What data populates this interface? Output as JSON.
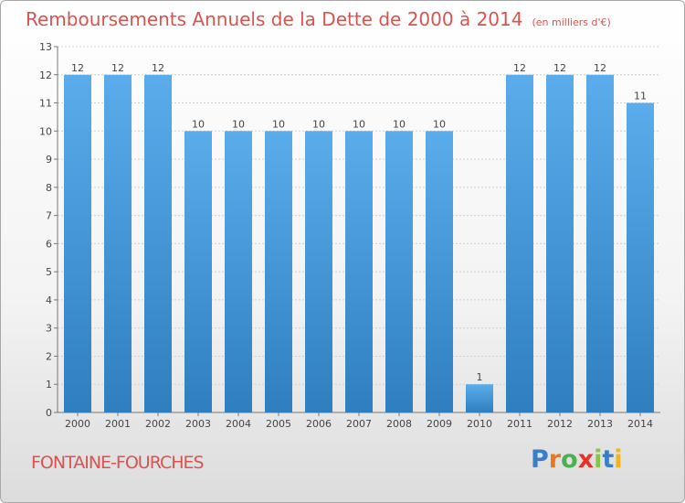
{
  "chart_data": {
    "type": "bar",
    "title": "Remboursements Annuels de la Dette de 2000 à 2014",
    "subtitle": "(en milliers d'€)",
    "categories": [
      "2000",
      "2001",
      "2002",
      "2003",
      "2004",
      "2005",
      "2006",
      "2007",
      "2008",
      "2009",
      "2010",
      "2011",
      "2012",
      "2013",
      "2014"
    ],
    "values": [
      12,
      12,
      12,
      10,
      10,
      10,
      10,
      10,
      10,
      10,
      1,
      12,
      12,
      12,
      11
    ],
    "xlabel": "",
    "ylabel": "",
    "ylim": [
      0,
      13
    ],
    "yticks": [
      0,
      1,
      2,
      3,
      4,
      5,
      6,
      7,
      8,
      9,
      10,
      11,
      12,
      13
    ],
    "grid": true,
    "bar_color": "#4a9fe0"
  },
  "commune": "FONTAINE-FOURCHES",
  "logo": {
    "letters": [
      "P",
      "r",
      "o",
      "x",
      "i",
      "t",
      "i"
    ],
    "colors": [
      "#3a7ec8",
      "#e87a1e",
      "#4caf50",
      "#e8312a",
      "#8bc34a",
      "#3a7ec8",
      "#f5b21b"
    ]
  }
}
